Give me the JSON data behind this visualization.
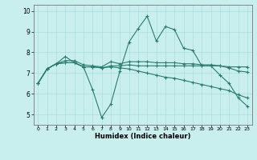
{
  "xlabel": "Humidex (Indice chaleur)",
  "background_color": "#c8eeee",
  "line_color": "#2a7d6e",
  "xlim": [
    -0.5,
    23.5
  ],
  "ylim": [
    4.5,
    10.3
  ],
  "yticks": [
    5,
    6,
    7,
    8,
    9,
    10
  ],
  "xticks": [
    0,
    1,
    2,
    3,
    4,
    5,
    6,
    7,
    8,
    9,
    10,
    11,
    12,
    13,
    14,
    15,
    16,
    17,
    18,
    19,
    20,
    21,
    22,
    23
  ],
  "lines": [
    {
      "x": [
        0,
        1,
        2,
        3,
        4,
        5,
        6,
        7,
        8,
        9,
        10,
        11,
        12,
        13,
        14,
        15,
        16,
        17,
        18,
        19,
        20,
        21,
        22,
        23
      ],
      "y": [
        6.5,
        7.2,
        7.45,
        7.8,
        7.5,
        7.3,
        6.2,
        4.85,
        5.5,
        7.1,
        8.5,
        9.15,
        9.75,
        8.55,
        9.25,
        9.1,
        8.2,
        8.1,
        7.35,
        7.35,
        6.9,
        6.5,
        5.8,
        5.4
      ]
    },
    {
      "x": [
        0,
        1,
        2,
        3,
        4,
        5,
        6,
        7,
        8,
        9,
        10,
        11,
        12,
        13,
        14,
        15,
        16,
        17,
        18,
        19,
        20,
        21,
        22,
        23
      ],
      "y": [
        6.5,
        7.2,
        7.45,
        7.5,
        7.5,
        7.3,
        7.3,
        7.25,
        7.35,
        7.35,
        7.4,
        7.35,
        7.35,
        7.35,
        7.35,
        7.35,
        7.35,
        7.35,
        7.35,
        7.35,
        7.35,
        7.3,
        7.3,
        7.3
      ]
    },
    {
      "x": [
        0,
        1,
        2,
        3,
        4,
        5,
        6,
        7,
        8,
        9,
        10,
        11,
        12,
        13,
        14,
        15,
        16,
        17,
        18,
        19,
        20,
        21,
        22,
        23
      ],
      "y": [
        6.5,
        7.2,
        7.45,
        7.5,
        7.5,
        7.3,
        7.3,
        7.25,
        7.3,
        7.25,
        7.2,
        7.1,
        7.0,
        6.9,
        6.8,
        6.75,
        6.65,
        6.55,
        6.45,
        6.35,
        6.25,
        6.15,
        5.95,
        5.8
      ]
    },
    {
      "x": [
        0,
        1,
        2,
        3,
        4,
        5,
        6,
        7,
        8,
        9,
        10,
        11,
        12,
        13,
        14,
        15,
        16,
        17,
        18,
        19,
        20,
        21,
        22,
        23
      ],
      "y": [
        6.5,
        7.2,
        7.45,
        7.6,
        7.6,
        7.4,
        7.35,
        7.3,
        7.55,
        7.45,
        7.55,
        7.55,
        7.55,
        7.5,
        7.5,
        7.5,
        7.45,
        7.45,
        7.4,
        7.4,
        7.35,
        7.25,
        7.1,
        7.05
      ]
    }
  ]
}
